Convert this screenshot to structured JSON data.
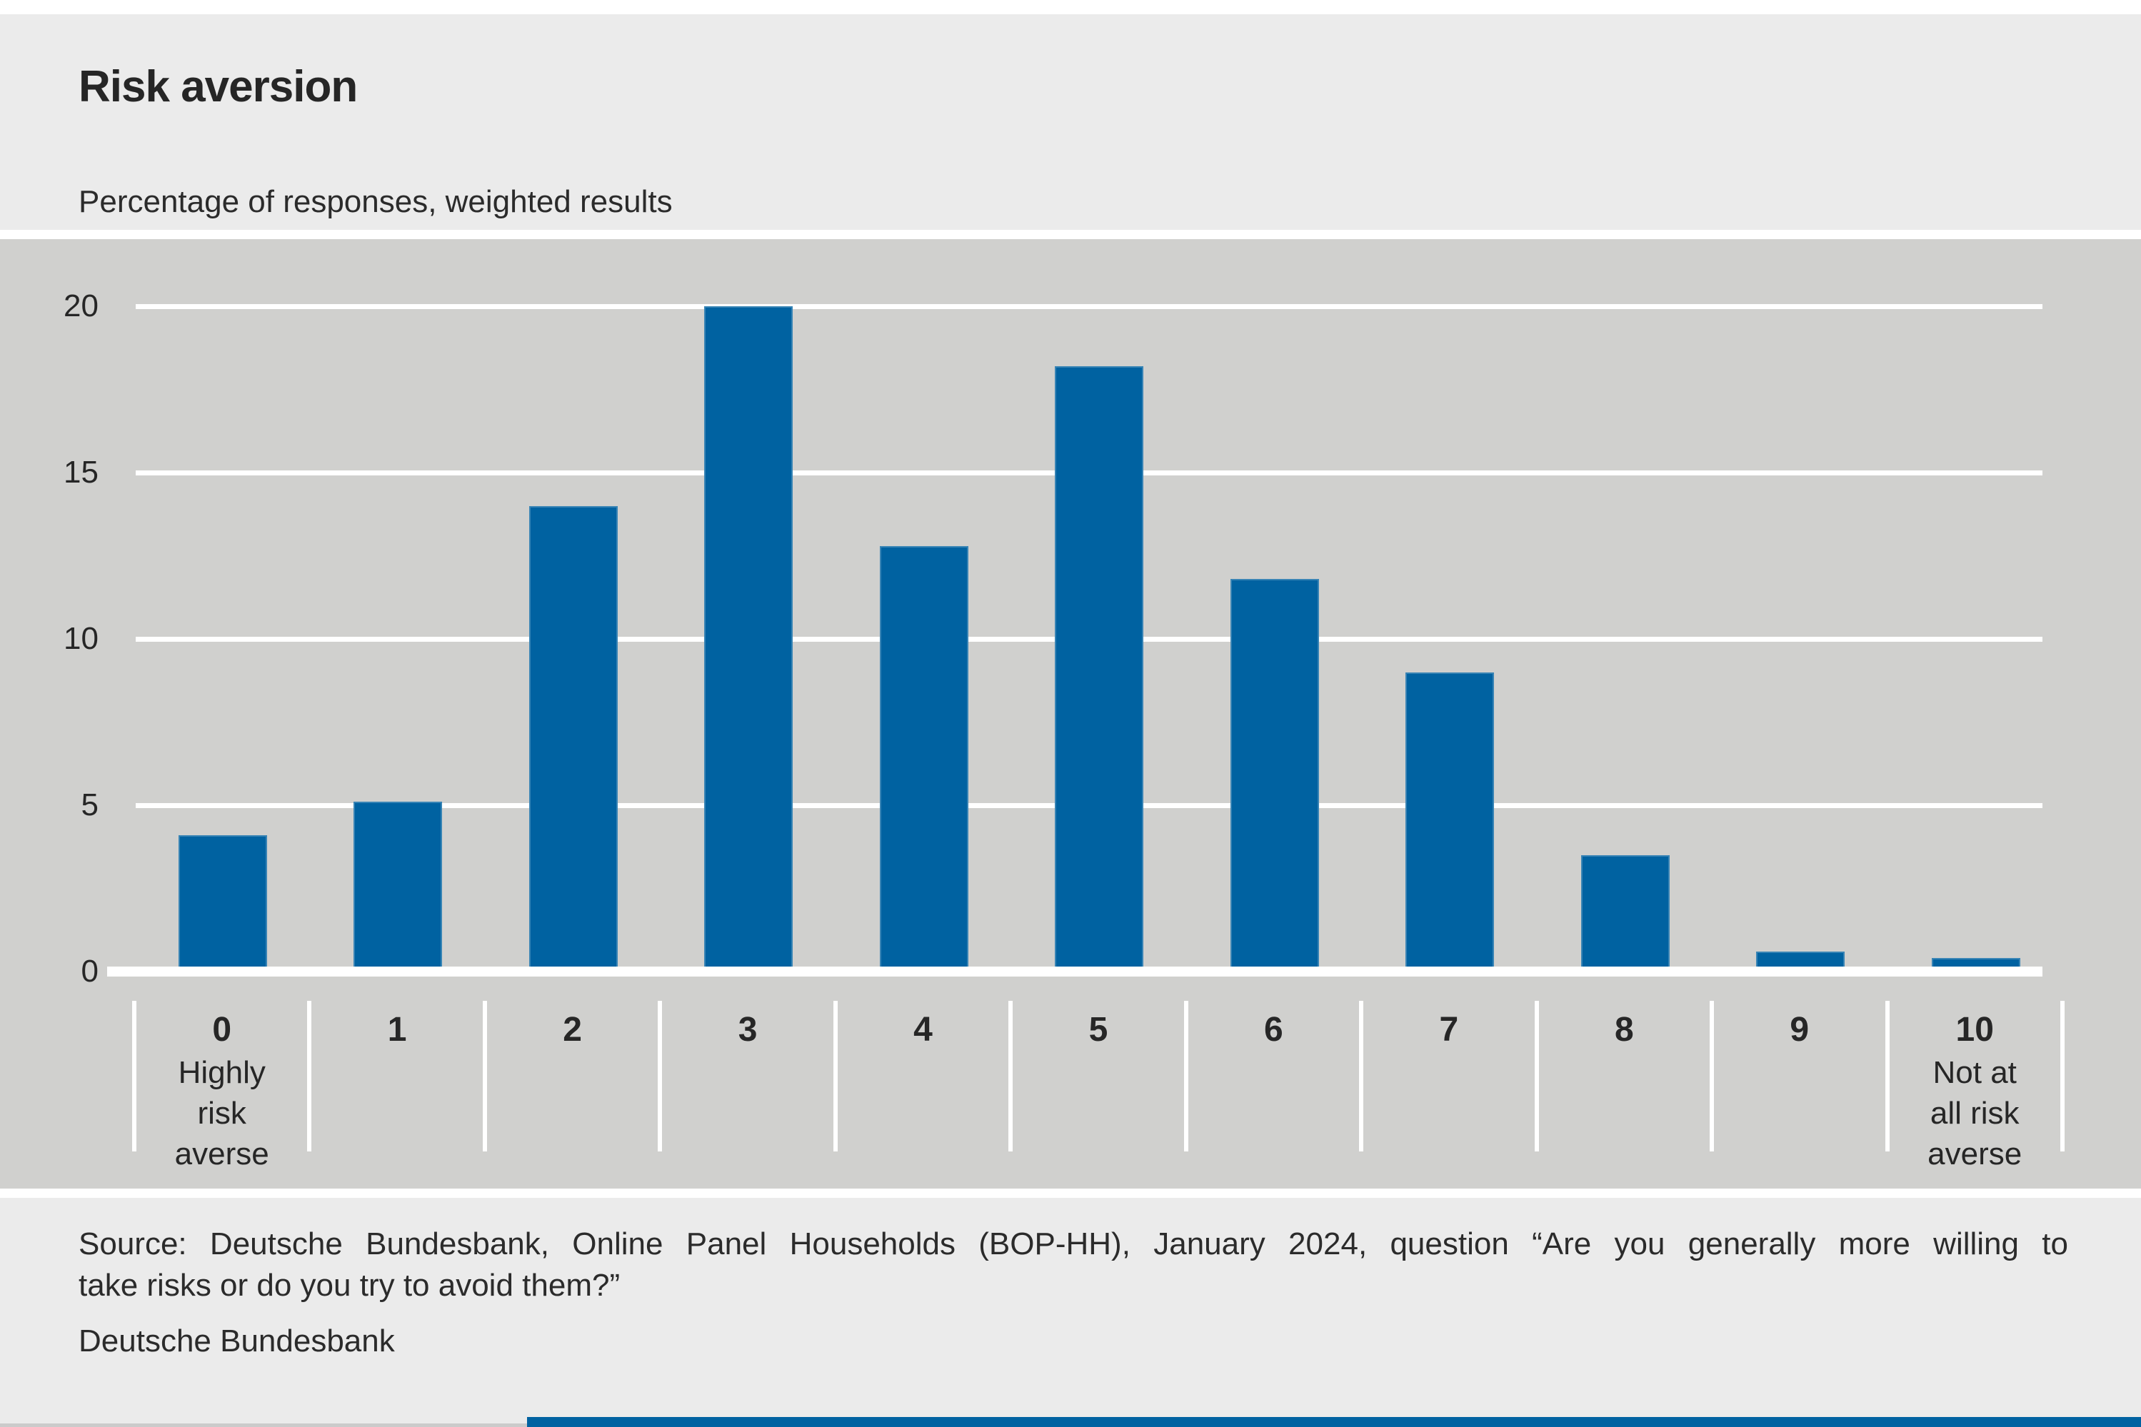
{
  "title": "Risk aversion",
  "subtitle": "Percentage of responses, weighted results",
  "source": {
    "line1": "Source: Deutsche Bundesbank, Online Panel Households (BOP-HH), January 2024, question “Are you generally more willing to",
    "line2": "take risks or do you try to avoid them?”"
  },
  "footer_brand": "Deutsche Bundesbank",
  "colors": {
    "bar_blue": "#0062a1",
    "plot_background": "#d0d0ce",
    "page_background": "#ebebeb",
    "gridline": "#ffffff",
    "text": "#262626",
    "bottom_strip_blue": "#0062a1",
    "bottom_strip_gray": "#cbcbcb"
  },
  "chart_data": {
    "type": "bar",
    "title": "Risk aversion",
    "subtitle": "Percentage of responses, weighted results",
    "categories": [
      "0",
      "1",
      "2",
      "3",
      "4",
      "5",
      "6",
      "7",
      "8",
      "9",
      "10"
    ],
    "values": [
      4.1,
      5.1,
      14.0,
      20.0,
      12.8,
      18.2,
      11.8,
      9.0,
      3.5,
      0.6,
      0.4
    ],
    "category_sublabels": [
      {
        "category": "0",
        "lines": [
          "Highly",
          "risk",
          "averse"
        ]
      },
      {
        "category": "10",
        "lines": [
          "Not at",
          "all risk",
          "averse"
        ]
      }
    ],
    "xlabel": "",
    "ylabel": "",
    "y_ticks": [
      0,
      5,
      10,
      15,
      20
    ],
    "ylim": [
      0,
      20
    ],
    "grid": "horizontal-white-lines-on-gray",
    "legend": "none",
    "bar_color": "#0062a1"
  }
}
